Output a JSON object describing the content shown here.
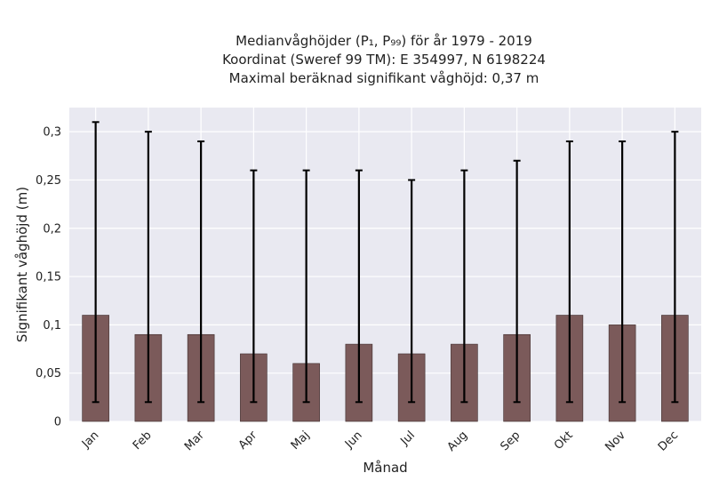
{
  "chart_data": {
    "type": "bar",
    "title_lines": [
      "Medianvåghöjder (P₁, P₉₉) för år 1979 - 2019",
      "Koordinat (Sweref 99 TM): E 354997, N 6198224",
      "Maximal beräknad signifikant våghöjd: 0,37 m"
    ],
    "xlabel": "Månad",
    "ylabel": "Signifikant våghöjd (m)",
    "categories": [
      "Jan",
      "Feb",
      "Mar",
      "Apr",
      "Maj",
      "Jun",
      "Jul",
      "Aug",
      "Sep",
      "Okt",
      "Nov",
      "Dec"
    ],
    "values": [
      0.11,
      0.09,
      0.09,
      0.07,
      0.06,
      0.08,
      0.07,
      0.08,
      0.09,
      0.11,
      0.1,
      0.11
    ],
    "p1": [
      0.02,
      0.02,
      0.02,
      0.02,
      0.02,
      0.02,
      0.02,
      0.02,
      0.02,
      0.02,
      0.02,
      0.02
    ],
    "p99": [
      0.31,
      0.3,
      0.29,
      0.26,
      0.26,
      0.26,
      0.25,
      0.26,
      0.27,
      0.29,
      0.29,
      0.3
    ],
    "ylim": [
      0,
      0.325
    ],
    "yticks": [
      0,
      0.05,
      0.1,
      0.15,
      0.2,
      0.25,
      0.3
    ],
    "ytick_labels": [
      "0",
      "0,05",
      "0,1",
      "0,15",
      "0,2",
      "0,25",
      "0,3"
    ],
    "grid": true,
    "bar_color": "#7b5a5a",
    "background_color": "#e9e9f1",
    "errorbar_color": "#000000"
  }
}
